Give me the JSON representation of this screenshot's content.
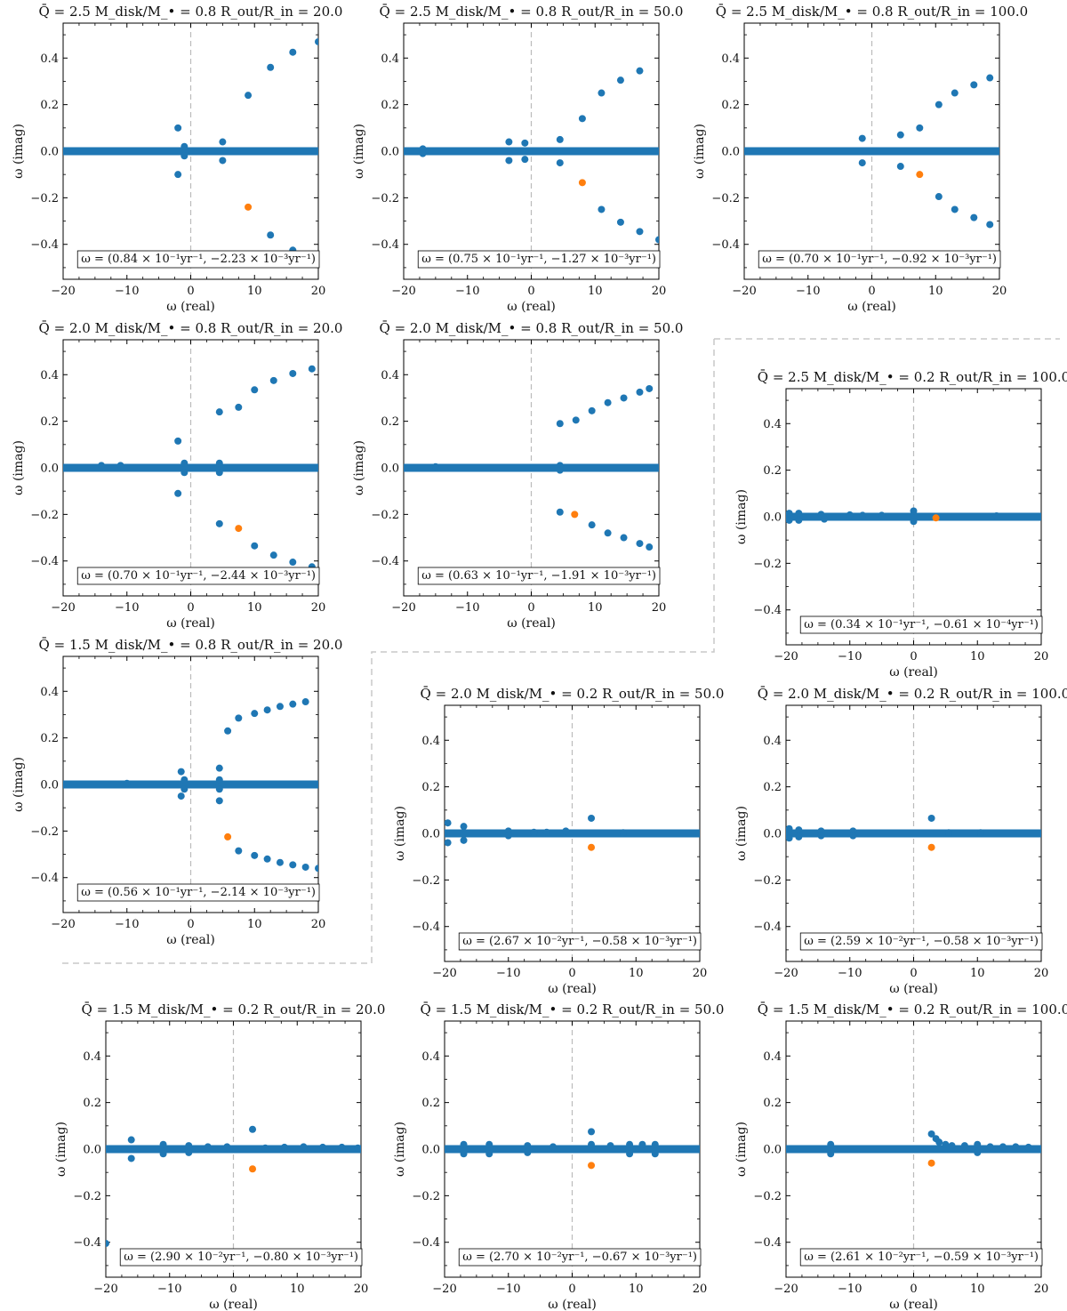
{
  "figure": {
    "xlabel": "ω (real)",
    "ylabel": "ω (imag)",
    "xlim": [
      -20,
      20
    ],
    "ylim": [
      -0.55,
      0.55
    ],
    "xticks": [
      -20,
      -10,
      0,
      10,
      20
    ],
    "yticks": [
      -0.4,
      -0.2,
      0.0,
      0.2,
      0.4
    ],
    "colors": {
      "series": "#1f77b4",
      "highlight": "#ff7f0e",
      "zero_line": "#bbbbbb",
      "separator": "#c8c8c8"
    }
  },
  "chart_data": [
    {
      "type": "scatter",
      "title": "Q̄ = 2.5   M_disk/M_• = 0.8   R_out/R_in = 20.0",
      "annotation": "ω = (0.84 × 10⁻¹yr⁻¹, −2.23 × 10⁻³yr⁻¹)",
      "band": [
        [
          -20,
          20
        ]
      ],
      "points": [
        [
          -2,
          0.1
        ],
        [
          -2,
          -0.1
        ],
        [
          -1,
          0.02
        ],
        [
          -1,
          -0.02
        ],
        [
          5,
          0.04
        ],
        [
          5,
          -0.04
        ],
        [
          9,
          0.24
        ],
        [
          12.5,
          0.36
        ],
        [
          16,
          0.425
        ],
        [
          20,
          0.47
        ],
        [
          12.5,
          -0.36
        ],
        [
          16,
          -0.425
        ],
        [
          20,
          -0.46
        ]
      ],
      "highlight": [
        9,
        -0.24
      ]
    },
    {
      "type": "scatter",
      "title": "Q̄ = 2.5   M_disk/M_• = 0.8   R_out/R_in = 50.0",
      "annotation": "ω = (0.75 × 10⁻¹yr⁻¹, −1.27 × 10⁻³yr⁻¹)",
      "band": [
        [
          -20,
          20
        ]
      ],
      "points": [
        [
          -17,
          0.01
        ],
        [
          -17,
          -0.01
        ],
        [
          -3.5,
          0.04
        ],
        [
          -3.5,
          -0.04
        ],
        [
          -1,
          0.035
        ],
        [
          -1,
          -0.035
        ],
        [
          4.5,
          0.05
        ],
        [
          4.5,
          -0.05
        ],
        [
          8,
          0.14
        ],
        [
          11,
          0.25
        ],
        [
          14,
          0.305
        ],
        [
          17,
          0.345
        ],
        [
          11,
          -0.25
        ],
        [
          14,
          -0.305
        ],
        [
          17,
          -0.345
        ],
        [
          20,
          -0.38
        ]
      ],
      "highlight": [
        8,
        -0.135
      ]
    },
    {
      "type": "scatter",
      "title": "Q̄ = 2.5   M_disk/M_• = 0.8   R_out/R_in = 100.0",
      "annotation": "ω = (0.70 × 10⁻¹yr⁻¹, −0.92 × 10⁻³yr⁻¹)",
      "band": [
        [
          -20,
          20
        ]
      ],
      "points": [
        [
          -1.5,
          0.055
        ],
        [
          -1.5,
          -0.05
        ],
        [
          4.5,
          0.07
        ],
        [
          4.5,
          -0.065
        ],
        [
          7.5,
          0.1
        ],
        [
          10.5,
          0.2
        ],
        [
          13,
          0.25
        ],
        [
          16,
          0.285
        ],
        [
          18.5,
          0.315
        ],
        [
          10.5,
          -0.195
        ],
        [
          13,
          -0.25
        ],
        [
          16,
          -0.285
        ],
        [
          18.5,
          -0.315
        ]
      ],
      "highlight": [
        7.5,
        -0.1
      ]
    },
    {
      "type": "scatter",
      "title": "Q̄ = 2.0   M_disk/M_• = 0.8   R_out/R_in = 20.0",
      "annotation": "ω = (0.70 × 10⁻¹yr⁻¹, −2.44 × 10⁻³yr⁻¹)",
      "band": [
        [
          -20,
          20
        ]
      ],
      "points": [
        [
          -14,
          0.01
        ],
        [
          -11,
          0.01
        ],
        [
          -2,
          0.115
        ],
        [
          -2,
          -0.11
        ],
        [
          -1,
          0.02
        ],
        [
          -1,
          -0.02
        ],
        [
          4.5,
          0.24
        ],
        [
          4.5,
          0.02
        ],
        [
          4.5,
          -0.02
        ],
        [
          4.5,
          -0.24
        ],
        [
          7.5,
          0.26
        ],
        [
          10,
          0.335
        ],
        [
          13,
          0.375
        ],
        [
          16,
          0.405
        ],
        [
          19,
          0.425
        ],
        [
          10,
          -0.335
        ],
        [
          13,
          -0.375
        ],
        [
          16,
          -0.405
        ],
        [
          19,
          -0.425
        ]
      ],
      "highlight": [
        7.5,
        -0.26
      ]
    },
    {
      "type": "scatter",
      "title": "Q̄ = 2.0   M_disk/M_• = 0.8   R_out/R_in = 50.0",
      "annotation": "ω = (0.63 × 10⁻¹yr⁻¹, −1.91 × 10⁻³yr⁻¹)",
      "band": [
        [
          -20,
          20
        ]
      ],
      "points": [
        [
          -15,
          0.005
        ],
        [
          4.5,
          0.19
        ],
        [
          4.5,
          0.01
        ],
        [
          4.5,
          -0.01
        ],
        [
          4.5,
          -0.19
        ],
        [
          7,
          0.205
        ],
        [
          9.5,
          0.245
        ],
        [
          12,
          0.28
        ],
        [
          14.5,
          0.3
        ],
        [
          17,
          0.325
        ],
        [
          18.5,
          0.34
        ],
        [
          9.5,
          -0.245
        ],
        [
          12,
          -0.28
        ],
        [
          14.5,
          -0.3
        ],
        [
          17,
          -0.325
        ],
        [
          18.5,
          -0.34
        ]
      ],
      "highlight": [
        6.8,
        -0.2
      ]
    },
    {
      "type": "scatter",
      "title": "Q̄ = 2.5   M_disk/M_• = 0.2   R_out/R_in = 100.0",
      "annotation": "ω = (0.34 × 10⁻¹yr⁻¹, −0.61 × 10⁻⁴yr⁻¹)",
      "band": [
        [
          -20,
          20
        ]
      ],
      "points": [
        [
          -19.5,
          0.015
        ],
        [
          -19.5,
          -0.015
        ],
        [
          -18,
          0.015
        ],
        [
          -18,
          -0.015
        ],
        [
          -14.5,
          0.01
        ],
        [
          -14,
          -0.01
        ],
        [
          -10,
          0.008
        ],
        [
          -8,
          0.006
        ],
        [
          -5,
          0.006
        ],
        [
          0,
          0.025
        ],
        [
          0,
          -0.02
        ],
        [
          13,
          0.004
        ]
      ],
      "highlight": [
        3.5,
        -0.005
      ]
    },
    {
      "type": "scatter",
      "title": "Q̄ = 1.5   M_disk/M_• = 0.8   R_out/R_in = 20.0",
      "annotation": "ω = (0.56 × 10⁻¹yr⁻¹, −2.14 × 10⁻³yr⁻¹)",
      "band": [
        [
          -20,
          20
        ]
      ],
      "points": [
        [
          -10,
          0.005
        ],
        [
          -1.5,
          0.055
        ],
        [
          -1.5,
          -0.05
        ],
        [
          -1,
          0.02
        ],
        [
          -1,
          -0.02
        ],
        [
          4.5,
          0.07
        ],
        [
          4.5,
          0.02
        ],
        [
          4.5,
          -0.02
        ],
        [
          4.5,
          -0.07
        ],
        [
          5.8,
          0.23
        ],
        [
          7.5,
          0.285
        ],
        [
          10,
          0.305
        ],
        [
          12,
          0.32
        ],
        [
          14,
          0.335
        ],
        [
          16,
          0.345
        ],
        [
          18,
          0.355
        ],
        [
          7.5,
          -0.285
        ],
        [
          10,
          -0.305
        ],
        [
          12,
          -0.32
        ],
        [
          14,
          -0.335
        ],
        [
          16,
          -0.345
        ],
        [
          18,
          -0.355
        ],
        [
          20,
          -0.36
        ]
      ],
      "highlight": [
        5.8,
        -0.225
      ]
    },
    {
      "type": "scatter",
      "title": "Q̄ = 2.0   M_disk/M_• = 0.2   R_out/R_in = 50.0",
      "annotation": "ω = (2.67 × 10⁻²yr⁻¹, −0.58 × 10⁻³yr⁻¹)",
      "band": [
        [
          -20,
          20
        ]
      ],
      "points": [
        [
          -19.5,
          0.045
        ],
        [
          -19.5,
          -0.04
        ],
        [
          -17,
          0.03
        ],
        [
          -17,
          -0.03
        ],
        [
          -10,
          0.01
        ],
        [
          -10,
          -0.01
        ],
        [
          -6,
          0.005
        ],
        [
          -4,
          0.005
        ],
        [
          -1,
          0.01
        ],
        [
          3,
          0.065
        ],
        [
          8,
          0.003
        ]
      ],
      "highlight": [
        3,
        -0.06
      ]
    },
    {
      "type": "scatter",
      "title": "Q̄ = 2.0   M_disk/M_• = 0.2   R_out/R_in = 100.0",
      "annotation": "ω = (2.59 × 10⁻²yr⁻¹, −0.58 × 10⁻³yr⁻¹)",
      "band": [
        [
          -20,
          20
        ]
      ],
      "points": [
        [
          -19.5,
          0.02
        ],
        [
          -19.5,
          -0.02
        ],
        [
          -18,
          0.015
        ],
        [
          -18,
          -0.015
        ],
        [
          -14.5,
          0.01
        ],
        [
          -14.5,
          -0.01
        ],
        [
          -9.5,
          0.01
        ],
        [
          -9.5,
          -0.01
        ],
        [
          2.8,
          0.065
        ],
        [
          5.5,
          0.003
        ],
        [
          10.5,
          0.003
        ]
      ],
      "highlight": [
        2.8,
        -0.06
      ]
    },
    {
      "type": "scatter",
      "title": "Q̄ = 1.5   M_disk/M_• = 0.2   R_out/R_in = 20.0",
      "annotation": "ω = (2.90 × 10⁻²yr⁻¹, −0.80 × 10⁻³yr⁻¹)",
      "band": [
        [
          -20,
          20
        ]
      ],
      "points": [
        [
          -20,
          -0.405
        ],
        [
          -16,
          0.04
        ],
        [
          -16,
          -0.04
        ],
        [
          -11,
          0.02
        ],
        [
          -11,
          -0.02
        ],
        [
          -7,
          0.015
        ],
        [
          -7,
          -0.015
        ],
        [
          -4,
          0.01
        ],
        [
          -1,
          0.01
        ],
        [
          3,
          0.085
        ],
        [
          5,
          0.005
        ],
        [
          8,
          0.008
        ],
        [
          11,
          0.01
        ],
        [
          14,
          0.008
        ],
        [
          17,
          0.008
        ],
        [
          19.5,
          0.005
        ]
      ],
      "highlight": [
        3,
        -0.085
      ]
    },
    {
      "type": "scatter",
      "title": "Q̄ = 1.5   M_disk/M_• = 0.2   R_out/R_in = 50.0",
      "annotation": "ω = (2.70 × 10⁻²yr⁻¹, −0.67 × 10⁻³yr⁻¹)",
      "band": [
        [
          -20,
          20
        ]
      ],
      "points": [
        [
          -17,
          0.02
        ],
        [
          -17,
          -0.02
        ],
        [
          -13,
          0.02
        ],
        [
          -13,
          -0.02
        ],
        [
          -7,
          0.015
        ],
        [
          -7,
          -0.015
        ],
        [
          -3,
          0.01
        ],
        [
          3,
          0.075
        ],
        [
          3,
          0.02
        ],
        [
          6,
          0.015
        ],
        [
          9,
          0.02
        ],
        [
          9,
          -0.02
        ],
        [
          11,
          0.02
        ],
        [
          13,
          0.02
        ],
        [
          13,
          -0.02
        ]
      ],
      "highlight": [
        3,
        -0.07
      ]
    },
    {
      "type": "scatter",
      "title": "Q̄ = 1.5   M_disk/M_• = 0.2   R_out/R_in = 100.0",
      "annotation": "ω = (2.61 × 10⁻²yr⁻¹, −0.59 × 10⁻³yr⁻¹)",
      "band": [
        [
          -20,
          20
        ]
      ],
      "points": [
        [
          -13,
          0.02
        ],
        [
          -13,
          -0.02
        ],
        [
          2.8,
          0.065
        ],
        [
          3.5,
          0.045
        ],
        [
          4,
          0.03
        ],
        [
          5,
          0.02
        ],
        [
          6,
          0.015
        ],
        [
          8,
          0.015
        ],
        [
          10,
          0.02
        ],
        [
          10,
          -0.015
        ],
        [
          12,
          0.01
        ],
        [
          14,
          0.01
        ],
        [
          16,
          0.01
        ],
        [
          18,
          0.008
        ]
      ],
      "highlight": [
        2.8,
        -0.06
      ]
    }
  ]
}
